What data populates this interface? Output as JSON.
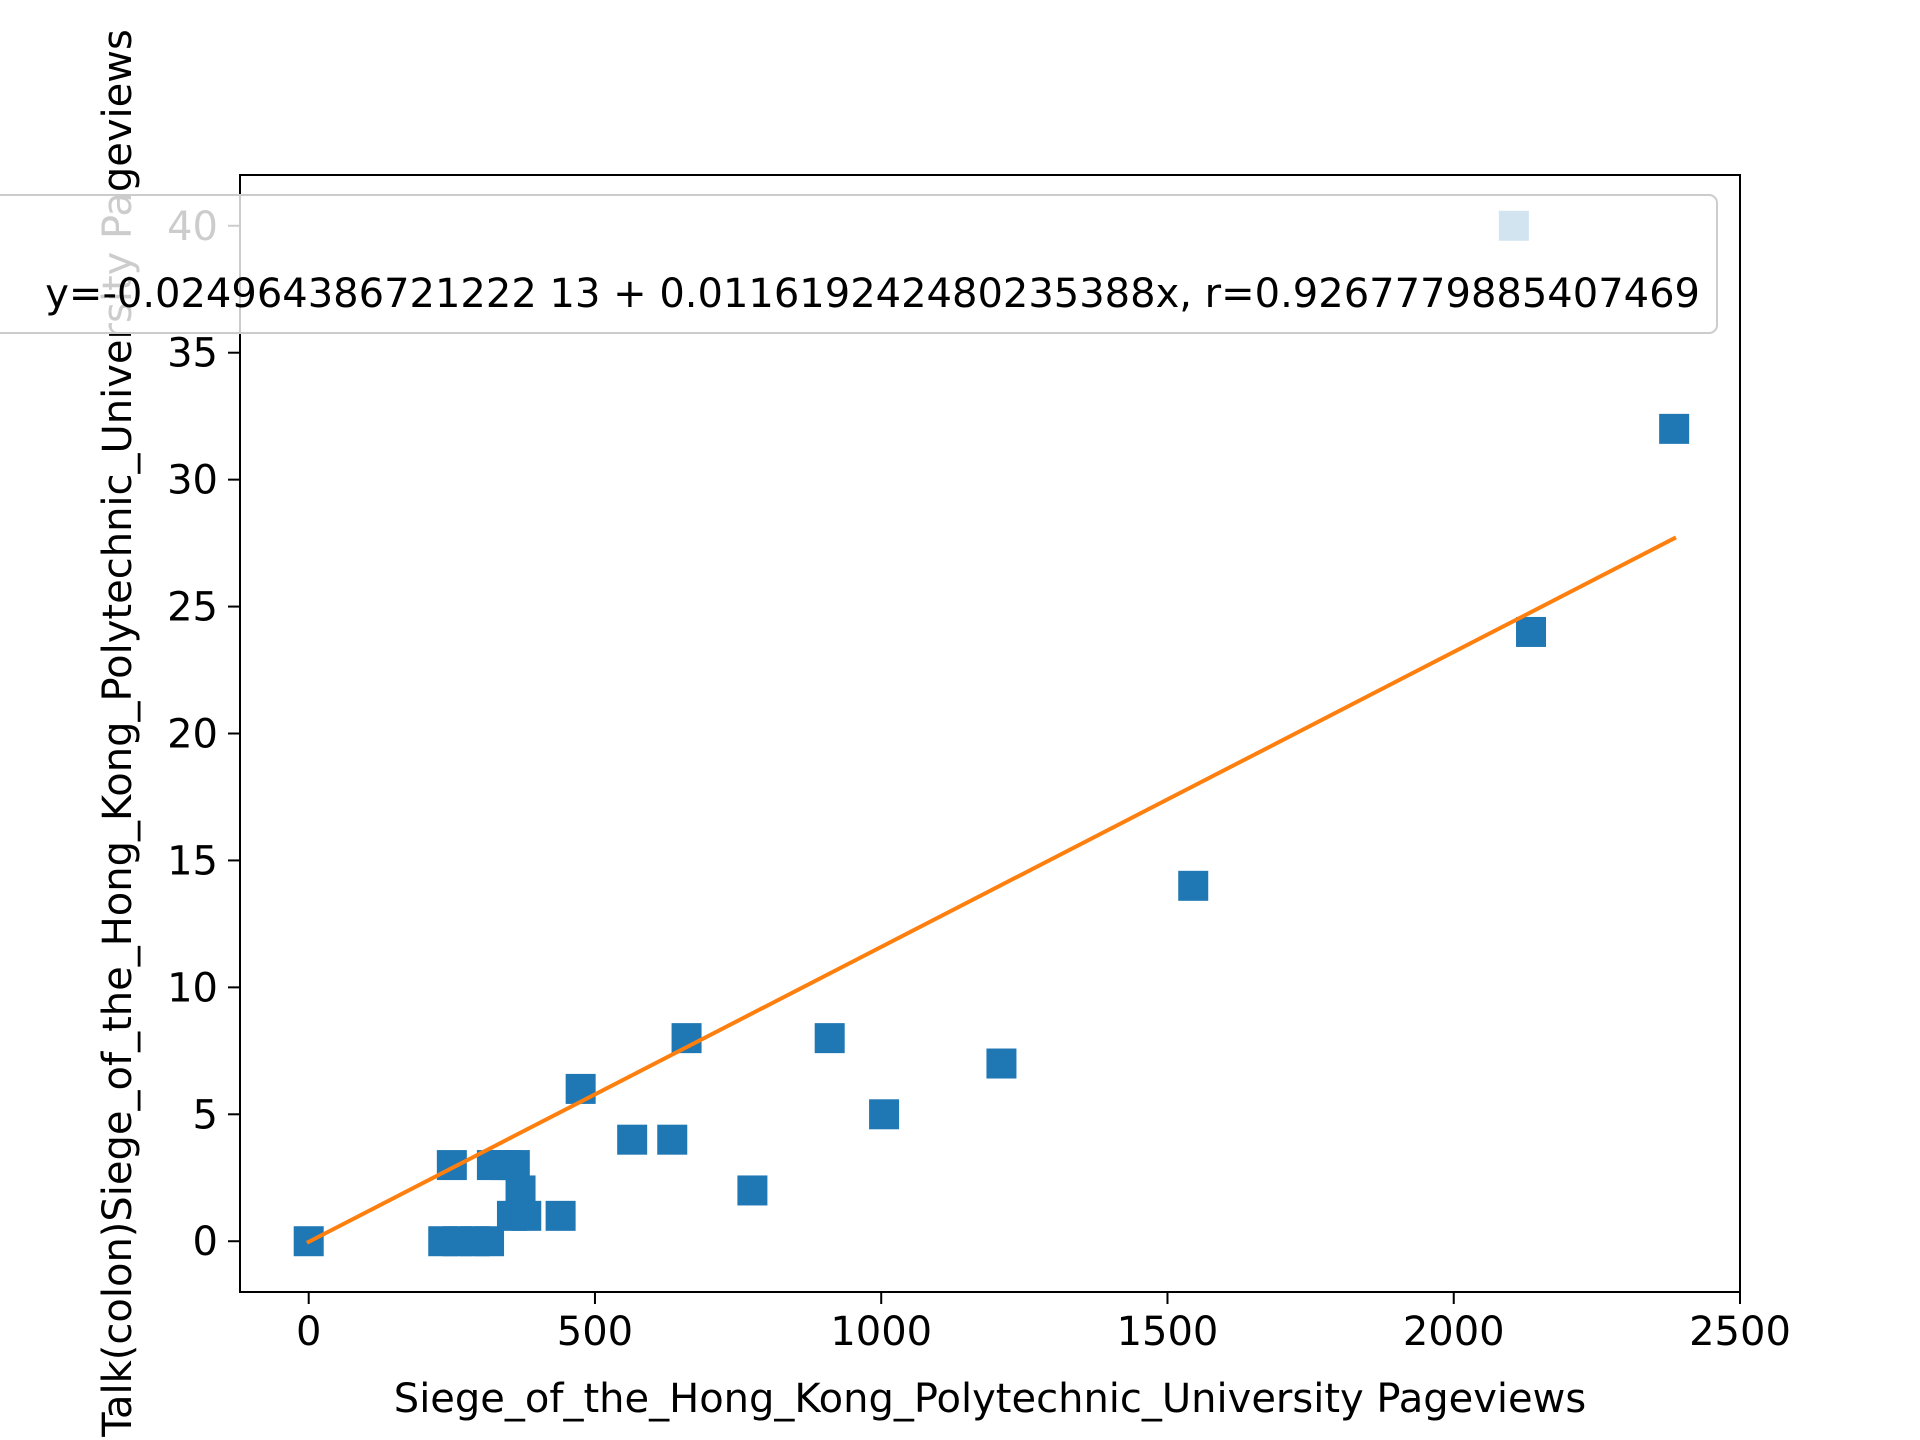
{
  "chart_data": {
    "type": "scatter",
    "xlabel": "Siege_of_the_Hong_Kong_Polytechnic_University Pageviews",
    "ylabel": "Talk(colon)Siege_of_the_Hong_Kong_Polytechnic_University Pageviews",
    "xlim": [
      -120,
      2500
    ],
    "ylim": [
      -2,
      42
    ],
    "xticks": [
      0,
      500,
      1000,
      1500,
      2000,
      2500
    ],
    "yticks": [
      0,
      5,
      10,
      15,
      20,
      25,
      30,
      35,
      40
    ],
    "grid": false,
    "legend_placement": "top",
    "legend_label": "y=-0.024964386721222 13 + 0.011619242480235388x, r=0.9267779885407469",
    "colors": {
      "points": "#1f77b4",
      "fit": "#ff7f0e"
    },
    "series": [
      {
        "type": "scatter",
        "marker": "square",
        "points": [
          [
            0,
            0
          ],
          [
            250,
            3
          ],
          [
            235,
            0
          ],
          [
            260,
            0
          ],
          [
            290,
            0
          ],
          [
            315,
            0
          ],
          [
            320,
            3
          ],
          [
            345,
            3
          ],
          [
            360,
            3
          ],
          [
            370,
            2
          ],
          [
            355,
            1
          ],
          [
            380,
            1
          ],
          [
            440,
            1
          ],
          [
            475,
            6
          ],
          [
            565,
            4
          ],
          [
            635,
            4
          ],
          [
            660,
            8
          ],
          [
            775,
            2
          ],
          [
            910,
            8
          ],
          [
            1005,
            5
          ],
          [
            1210,
            7
          ],
          [
            1545,
            14
          ],
          [
            2105,
            40
          ],
          [
            2135,
            24
          ],
          [
            2385,
            32
          ]
        ]
      },
      {
        "type": "line",
        "intercept": -0.024964386721222,
        "slope": 0.011619242480235388,
        "x_range": [
          0,
          2385
        ]
      }
    ]
  }
}
